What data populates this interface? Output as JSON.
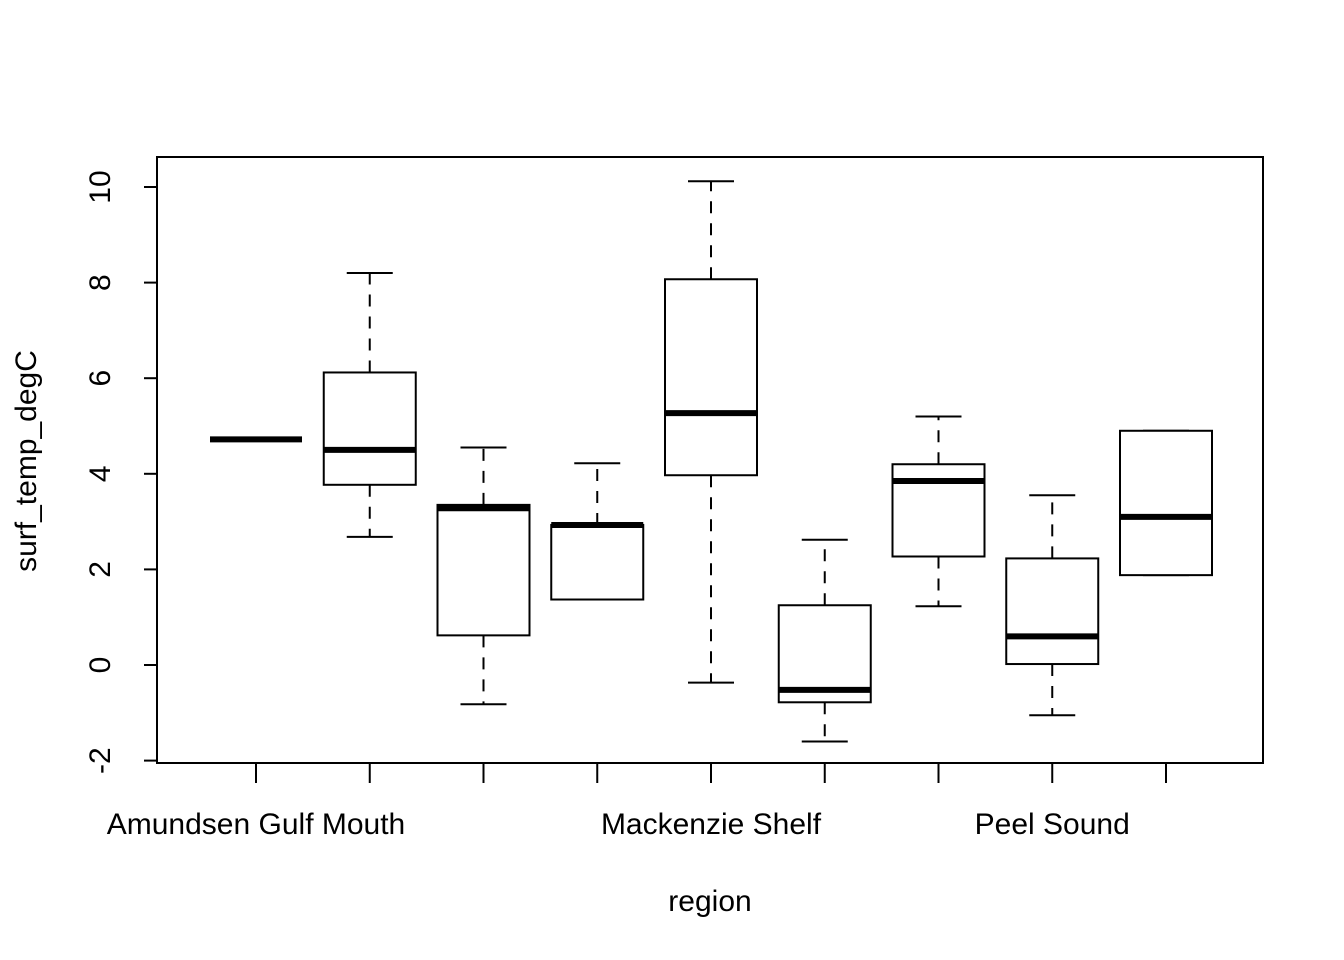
{
  "chart_data": {
    "type": "boxplot",
    "xlabel": "region",
    "ylabel": "surf_temp_degC",
    "ylim": [
      -2,
      10.5
    ],
    "yticks": [
      "-2",
      "0",
      "2",
      "4",
      "6",
      "8",
      "10"
    ],
    "categories": [
      "Amundsen Gulf Mouth",
      "",
      "",
      "",
      "Mackenzie Shelf",
      "",
      "",
      "Peel Sound",
      ""
    ],
    "boxes": [
      {
        "min": 4.72,
        "q1": 4.72,
        "median": 4.72,
        "q3": 4.72,
        "max": 4.72
      },
      {
        "min": 2.68,
        "q1": 3.77,
        "median": 4.5,
        "q3": 6.12,
        "max": 8.2
      },
      {
        "min": -0.82,
        "q1": 0.62,
        "median": 3.28,
        "q3": 3.35,
        "max": 4.55
      },
      {
        "min": 1.37,
        "q1": 1.37,
        "median": 2.93,
        "q3": 2.93,
        "max": 4.22
      },
      {
        "min": -0.37,
        "q1": 3.97,
        "median": 5.27,
        "q3": 8.07,
        "max": 10.12
      },
      {
        "min": -1.6,
        "q1": -0.78,
        "median": -0.52,
        "q3": 1.25,
        "max": 2.62
      },
      {
        "min": 1.23,
        "q1": 2.27,
        "median": 3.85,
        "q3": 4.2,
        "max": 5.2
      },
      {
        "min": -1.05,
        "q1": 0.02,
        "median": 0.6,
        "q3": 2.23,
        "max": 3.55
      },
      {
        "min": 1.88,
        "q1": 1.88,
        "median": 3.1,
        "q3": 4.9,
        "max": 4.9
      }
    ],
    "grid": false,
    "legend": "none"
  }
}
